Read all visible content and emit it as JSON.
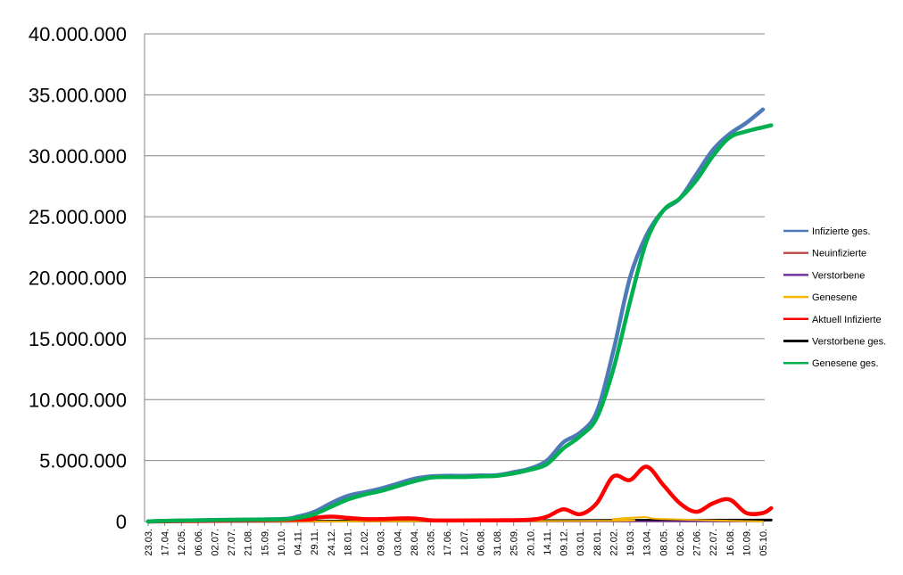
{
  "chart_data": {
    "type": "line",
    "title": "",
    "xlabel": "",
    "ylabel": "",
    "ylim": [
      0,
      40000000
    ],
    "y_ticks": [
      "0",
      "5.000.000",
      "10.000.000",
      "15.000.000",
      "20.000.000",
      "25.000.000",
      "30.000.000",
      "35.000.000",
      "40.000.000"
    ],
    "y_tick_values": [
      0,
      5000000,
      10000000,
      15000000,
      20000000,
      25000000,
      30000000,
      35000000,
      40000000
    ],
    "x_tick_labels": [
      "23.03.",
      "17.04.",
      "12.05.",
      "06.06.",
      "02.07.",
      "27.07.",
      "21.08.",
      "15.09.",
      "10.10.",
      "04.11.",
      "29.11.",
      "24.12.",
      "18.01.",
      "12.02.",
      "09.03.",
      "03.04.",
      "28.04.",
      "23.05.",
      "17.06.",
      "12.07.",
      "06.08.",
      "31.08.",
      "25.09.",
      "20.10.",
      "14.11.",
      "09.12.",
      "03.01.",
      "28.01.",
      "22.02.",
      "19.03.",
      "13.04.",
      "08.05.",
      "02.06.",
      "27.06.",
      "22.07.",
      "16.08.",
      "10.09.",
      "05.10."
    ],
    "grid": true,
    "legend_position": "right",
    "series": [
      {
        "name": "Infizierte ges.",
        "color": "#4f7ab8",
        "points": [
          [
            0,
            0
          ],
          [
            1,
            50000
          ],
          [
            4,
            130000
          ],
          [
            8,
            200000
          ],
          [
            9,
            400000
          ],
          [
            10,
            800000
          ],
          [
            11,
            1500000
          ],
          [
            12,
            2100000
          ],
          [
            13,
            2400000
          ],
          [
            14,
            2700000
          ],
          [
            15,
            3100000
          ],
          [
            16,
            3500000
          ],
          [
            17,
            3700000
          ],
          [
            18,
            3750000
          ],
          [
            19,
            3750000
          ],
          [
            20,
            3780000
          ],
          [
            21,
            3800000
          ],
          [
            22,
            4050000
          ],
          [
            23,
            4350000
          ],
          [
            24,
            5000000
          ],
          [
            25,
            6500000
          ],
          [
            26,
            7300000
          ],
          [
            27,
            9000000
          ],
          [
            28,
            14000000
          ],
          [
            29,
            20000000
          ],
          [
            30,
            23500000
          ],
          [
            31,
            25500000
          ],
          [
            32,
            26500000
          ],
          [
            33,
            28500000
          ],
          [
            34,
            30500000
          ],
          [
            35,
            31800000
          ],
          [
            36,
            32700000
          ],
          [
            37,
            33800000
          ]
        ]
      },
      {
        "name": "Neuinfizierte",
        "color": "#c0504d",
        "points": [
          [
            0,
            0
          ],
          [
            37,
            0
          ]
        ]
      },
      {
        "name": "Verstorbene",
        "color": "#7030a0",
        "points": [
          [
            0,
            0
          ],
          [
            37,
            0
          ]
        ]
      },
      {
        "name": "Genesene",
        "color": "#f4b400",
        "points": [
          [
            0,
            0
          ],
          [
            27,
            50000
          ],
          [
            28,
            200000
          ],
          [
            29,
            300000
          ],
          [
            30,
            350000
          ],
          [
            31,
            200000
          ],
          [
            37,
            0
          ]
        ]
      },
      {
        "name": "Aktuell Infizierte",
        "color": "#ff0000",
        "points": [
          [
            0,
            0
          ],
          [
            9,
            150000
          ],
          [
            10,
            300000
          ],
          [
            11,
            400000
          ],
          [
            12,
            300000
          ],
          [
            13,
            200000
          ],
          [
            14,
            200000
          ],
          [
            15,
            250000
          ],
          [
            16,
            250000
          ],
          [
            17,
            100000
          ],
          [
            18,
            80000
          ],
          [
            21,
            100000
          ],
          [
            23,
            150000
          ],
          [
            24,
            400000
          ],
          [
            25,
            1000000
          ],
          [
            26,
            600000
          ],
          [
            27,
            1500000
          ],
          [
            28,
            3700000
          ],
          [
            29,
            3400000
          ],
          [
            30,
            4500000
          ],
          [
            31,
            3000000
          ],
          [
            32,
            1500000
          ],
          [
            33,
            800000
          ],
          [
            34,
            1500000
          ],
          [
            35,
            1800000
          ],
          [
            36,
            700000
          ],
          [
            37,
            700000
          ],
          [
            37.5,
            1100000
          ]
        ]
      },
      {
        "name": "Verstorbene ges.",
        "color": "#000000",
        "points": [
          [
            0,
            0
          ],
          [
            10,
            30000
          ],
          [
            20,
            60000
          ],
          [
            30,
            100000
          ],
          [
            37.5,
            120000
          ]
        ]
      },
      {
        "name": "Genesene ges.",
        "color": "#00b050",
        "points": [
          [
            0,
            0
          ],
          [
            1,
            50000
          ],
          [
            4,
            120000
          ],
          [
            8,
            180000
          ],
          [
            9,
            300000
          ],
          [
            10,
            600000
          ],
          [
            11,
            1200000
          ],
          [
            12,
            1800000
          ],
          [
            13,
            2200000
          ],
          [
            14,
            2500000
          ],
          [
            15,
            2900000
          ],
          [
            16,
            3300000
          ],
          [
            17,
            3600000
          ],
          [
            18,
            3650000
          ],
          [
            19,
            3650000
          ],
          [
            20,
            3700000
          ],
          [
            21,
            3750000
          ],
          [
            22,
            3950000
          ],
          [
            23,
            4250000
          ],
          [
            24,
            4700000
          ],
          [
            25,
            6000000
          ],
          [
            26,
            7000000
          ],
          [
            27,
            8500000
          ],
          [
            28,
            12500000
          ],
          [
            29,
            18000000
          ],
          [
            30,
            23000000
          ],
          [
            31,
            25500000
          ],
          [
            32,
            26500000
          ],
          [
            33,
            28000000
          ],
          [
            34,
            30000000
          ],
          [
            35,
            31500000
          ],
          [
            36,
            32000000
          ],
          [
            37.5,
            32500000
          ]
        ]
      }
    ]
  }
}
